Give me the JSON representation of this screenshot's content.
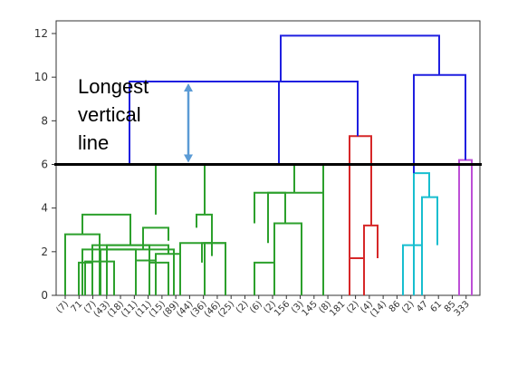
{
  "chart_data": {
    "type": "dendrogram",
    "ylim": [
      0,
      12.6
    ],
    "yticks": [
      0,
      2,
      4,
      6,
      8,
      10,
      12
    ],
    "leaf_labels": [
      "(7)",
      "71",
      "(7)",
      "(43)",
      "(18)",
      "(11)",
      "(11)",
      "(15)",
      "(89)",
      "(44)",
      "(36)",
      "(46)",
      "(25)",
      "(2)",
      "(6)",
      "(2)",
      "156",
      "(3)",
      "145",
      "(8)",
      "181",
      "(2)",
      "(4)",
      "(14)",
      "86",
      "(2)",
      "47",
      "61",
      "85",
      "333"
    ],
    "links": [
      {
        "xs": [
          0,
          1
        ],
        "heights": [
          0,
          0,
          2.8
        ],
        "color": "#2ca02c"
      },
      {
        "xs": [
          2,
          3
        ],
        "heights": [
          0,
          0,
          1.5
        ],
        "color": "#2ca02c"
      },
      {
        "xs": [
          4,
          6
        ],
        "heights": [
          0,
          0,
          1.55
        ],
        "color": "#2ca02c"
      },
      {
        "xs": [
          5,
          7
        ],
        "heights": [
          0,
          0,
          2.1
        ],
        "color": "#2ca02c"
      },
      {
        "xs": [
          8,
          9
        ],
        "heights": [
          0,
          0,
          1.6
        ],
        "color": "#2ca02c"
      },
      {
        "xs": [
          10,
          11
        ],
        "heights": [
          0,
          0,
          1.5
        ],
        "color": "#2ca02c"
      },
      {
        "xs": [
          12,
          13
        ],
        "heights": [
          0,
          0,
          1.9
        ],
        "color": "#2ca02c"
      },
      {
        "xs": [
          14,
          15
        ],
        "heights": [
          1.6,
          0,
          2.3
        ],
        "color": "#2ca02c"
      },
      {
        "xs": [
          16,
          17
        ],
        "heights": [
          0,
          1.9,
          2.3
        ],
        "color": "#2ca02c"
      },
      {
        "xs": [
          18,
          19
        ],
        "heights": [
          2.8,
          2.3,
          3.7
        ],
        "color": "#2ca02c"
      },
      {
        "xs": [
          20,
          21
        ],
        "heights": [
          2.1,
          2.5,
          3.1
        ],
        "color": "#2ca02c"
      },
      {
        "xs": [
          22,
          23
        ],
        "heights": [
          1.8,
          1.8,
          2.4
        ],
        "color": "#2ca02c"
      },
      {
        "xs": [
          24,
          25
        ],
        "heights": [
          1.5,
          1.9,
          2.4
        ],
        "color": "#2ca02c"
      },
      {
        "xs": [
          26,
          27
        ],
        "heights": [
          3.1,
          2.4,
          3.7
        ],
        "color": "#2ca02c"
      },
      {
        "xs": [
          28,
          29
        ],
        "heights": [
          3.7,
          3.7,
          6.0
        ],
        "color": "#2ca02c"
      },
      {
        "xs": [
          30,
          31
        ],
        "heights": [
          0,
          0,
          2.1
        ],
        "color": "#2ca02c"
      },
      {
        "xs": [
          32,
          33
        ],
        "heights": [
          0,
          0,
          2.4
        ],
        "color": "#2ca02c"
      },
      {
        "xs": [
          34,
          35
        ],
        "heights": [
          0,
          0,
          1.5
        ],
        "color": "#2ca02c"
      },
      {
        "xs": [
          36,
          37
        ],
        "heights": [
          1.5,
          0,
          3.3
        ],
        "color": "#2ca02c"
      },
      {
        "xs": [
          38,
          39
        ],
        "heights": [
          2.4,
          3.3,
          4.7
        ],
        "color": "#2ca02c"
      },
      {
        "xs": [
          40,
          41
        ],
        "heights": [
          3.3,
          0,
          4.7
        ],
        "color": "#2ca02c"
      },
      {
        "xs": [
          42,
          43
        ],
        "heights": [
          4.7,
          4.7,
          6.0
        ],
        "color": "#2ca02c"
      },
      {
        "xs": [
          44,
          45
        ],
        "heights": [
          0,
          0,
          1.7
        ],
        "color": "#d62728"
      },
      {
        "xs": [
          46,
          47
        ],
        "heights": [
          0,
          1.7,
          3.2
        ],
        "color": "#d62728"
      },
      {
        "xs": [
          48,
          49
        ],
        "heights": [
          0,
          3.2,
          7.3
        ],
        "color": "#d62728"
      },
      {
        "xs": [
          50,
          51
        ],
        "heights": [
          0,
          0,
          2.3
        ],
        "color": "#17becf"
      },
      {
        "xs": [
          52,
          53
        ],
        "heights": [
          0,
          2.3,
          4.5
        ],
        "color": "#17becf"
      },
      {
        "xs": [
          54,
          55
        ],
        "heights": [
          0,
          4.5,
          5.6
        ],
        "color": "#17becf"
      },
      {
        "xs": [
          56,
          57
        ],
        "heights": [
          0,
          0,
          6.2
        ],
        "color": "#bd4fd6"
      },
      {
        "xs": [
          58,
          59
        ],
        "heights": [
          6.0,
          6.0,
          9.8
        ],
        "color": "#1f1fe0"
      },
      {
        "xs": [
          60,
          61
        ],
        "heights": [
          5.6,
          6.2,
          10.1
        ],
        "color": "#1f1fe0"
      },
      {
        "xs": [
          62,
          63
        ],
        "heights": [
          9.8,
          7.3,
          9.8
        ],
        "color": "#1f1fe0"
      },
      {
        "xs": [
          64,
          65
        ],
        "heights": [
          9.8,
          10.1,
          11.9
        ],
        "color": "#1f1fe0"
      }
    ],
    "cut_line": {
      "y": 6.0,
      "color": "#000000"
    },
    "annotation": {
      "lines": [
        "Longest",
        "vertical",
        "line"
      ]
    },
    "arrow": {
      "from": 6.0,
      "to": 9.8,
      "color": "#5b9bd5"
    }
  }
}
